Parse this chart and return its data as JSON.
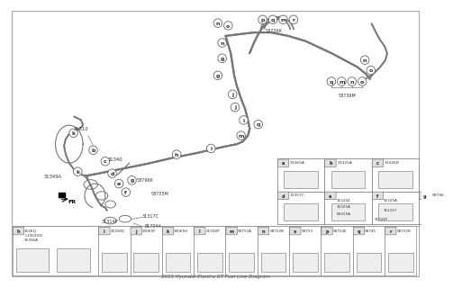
{
  "title": "2015 Hyundai Elantra GT Fuel Line Diagram",
  "bg_color": "#f5f5f5",
  "line_color": "#666666",
  "label_color": "#333333",
  "bottom_parts": [
    {
      "letter": "h",
      "codes": [
        "31361J",
        "(-100209)",
        "31356A"
      ],
      "wide": true
    },
    {
      "letter": "i",
      "code": "31356D"
    },
    {
      "letter": "j",
      "code": "33065F"
    },
    {
      "letter": "k",
      "code": "33065H"
    },
    {
      "letter": "l",
      "code": "31358P"
    },
    {
      "letter": "m",
      "code": "58752A"
    },
    {
      "letter": "n",
      "code": "58752B"
    },
    {
      "letter": "o",
      "code": "58753"
    },
    {
      "letter": "p",
      "code": "58754E"
    },
    {
      "letter": "q",
      "code": "58745"
    },
    {
      "letter": "r",
      "code": "58752R"
    }
  ],
  "upper_right_parts": [
    {
      "letter": "a",
      "code": "31365A"
    },
    {
      "letter": "b",
      "code": "31325A"
    },
    {
      "letter": "c",
      "code": "31326D"
    }
  ],
  "mid_right_parts_row1": [
    {
      "letter": "d",
      "code": "31357C"
    },
    {
      "letter": "e",
      "codes": [
        "31324Z",
        "31325A",
        "65325A"
      ]
    },
    {
      "letter": "f",
      "codes": [
        "31324Y",
        "31125T",
        "31325A"
      ]
    },
    {
      "letter": "g",
      "code": "58746"
    }
  ]
}
